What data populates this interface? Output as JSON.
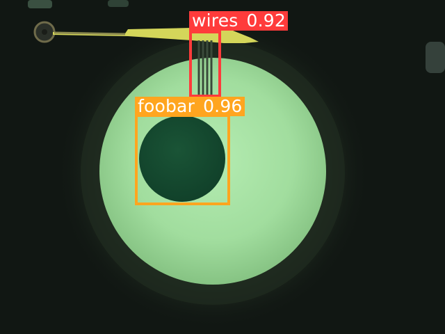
{
  "detections": [
    {
      "label": "wires",
      "score": "0.92",
      "color": "#ff3b3b"
    },
    {
      "label": "foobar",
      "score": "0.96",
      "color": "#ffa51f"
    }
  ],
  "colors": {
    "background": "#111713",
    "disc": "#9fdc9d",
    "disc_hole": "#154c31",
    "wire_trace": "#d7d75a"
  }
}
